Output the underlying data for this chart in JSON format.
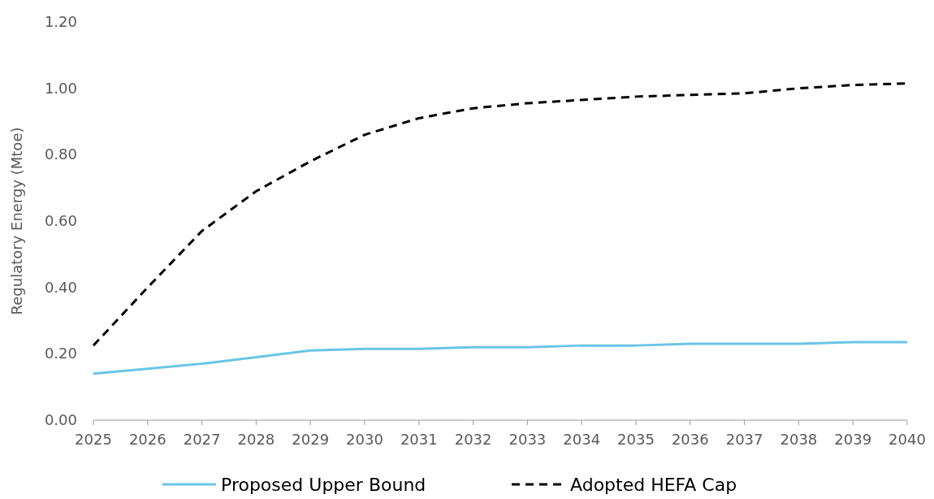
{
  "chart_data": {
    "type": "line",
    "ylabel": "Regulatory Energy (Mtoe)",
    "x": [
      2025,
      2026,
      2027,
      2028,
      2029,
      2030,
      2031,
      2032,
      2033,
      2034,
      2035,
      2036,
      2037,
      2038,
      2039,
      2040
    ],
    "xlim": [
      2025,
      2040
    ],
    "xticks": [
      2025,
      2026,
      2027,
      2028,
      2029,
      2030,
      2031,
      2032,
      2033,
      2034,
      2035,
      2036,
      2037,
      2038,
      2039,
      2040
    ],
    "ylim": [
      0,
      1.2
    ],
    "yticks": [
      {
        "value": 0,
        "label": "0.00"
      },
      {
        "value": 0.2,
        "label": "0.20"
      },
      {
        "value": 0.4,
        "label": "0.40"
      },
      {
        "value": 0.6,
        "label": "0.60"
      },
      {
        "value": 0.8,
        "label": "0.80"
      },
      {
        "value": 1,
        "label": "1.00"
      },
      {
        "value": 1.2,
        "label": "1.20"
      }
    ],
    "legend": "bottom",
    "series": [
      {
        "name": "Proposed Upper Bound",
        "color": "#6ac5e6",
        "line_style": "solid",
        "values": [
          0.14,
          0.155,
          0.17,
          0.19,
          0.21,
          0.215,
          0.215,
          0.22,
          0.22,
          0.225,
          0.225,
          0.23,
          0.23,
          0.23,
          0.235,
          0.235
        ]
      },
      {
        "name": "Adopted HEFA Cap",
        "color": "#000000",
        "line_style": "dashed",
        "values": [
          0.225,
          0.4,
          0.57,
          0.69,
          0.78,
          0.86,
          0.91,
          0.94,
          0.955,
          0.965,
          0.975,
          0.98,
          0.985,
          1.0,
          1.01,
          1.015
        ]
      }
    ]
  }
}
